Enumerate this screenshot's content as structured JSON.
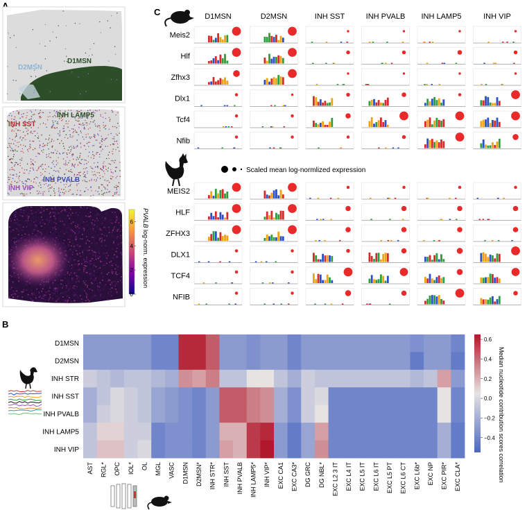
{
  "panel_letters": {
    "a": "A",
    "b": "B",
    "c": "C"
  },
  "panel_a": {
    "top_labels": {
      "d2msn": "D2MSN",
      "d1msn": "D1MSN"
    },
    "mid_labels": {
      "inh_lamp5": "INH LAMP5",
      "inh_sst": "INH SST",
      "inh_pvalb": "INH PVALB",
      "inh_vip": "INH VIP"
    },
    "colorbar": {
      "label_gene": "PVALB",
      "label_rest": " log-norm. expression",
      "ticks": [
        "0",
        "2",
        "4",
        "6"
      ]
    }
  },
  "panel_c": {
    "columns": [
      "D1MSN",
      "D2MSN",
      "INH SST",
      "INH PVALB",
      "INH LAMP5",
      "INH VIP"
    ],
    "mouse_rows": [
      "Meis2",
      "Hlf",
      "Zfhx3",
      "Dlx1",
      "Tcf4",
      "Nfib"
    ],
    "chicken_rows": [
      "MEIS2",
      "HLF",
      "ZFHX3",
      "DLX1",
      "TCF4",
      "NFIB"
    ],
    "legend_text": "Scaled mean log-normlized expression",
    "mouse_dot_sizes": [
      [
        1.0,
        1.0,
        0.1,
        0.1,
        0.1,
        0.1
      ],
      [
        1.0,
        1.0,
        0.3,
        0.3,
        0.4,
        0.3
      ],
      [
        0.7,
        1.0,
        0.1,
        0.1,
        0.1,
        0.1
      ],
      [
        0.2,
        0.1,
        0.3,
        0.4,
        0.2,
        1.0
      ],
      [
        0.2,
        0.2,
        0.5,
        1.0,
        1.0,
        1.0
      ],
      [
        0.2,
        0.2,
        0.2,
        0.3,
        1.0,
        0.6
      ]
    ],
    "chicken_dot_sizes": [
      [
        1.0,
        1.0,
        0.2,
        0.2,
        0.2,
        0.2
      ],
      [
        1.0,
        1.0,
        0.5,
        0.5,
        0.5,
        0.5
      ],
      [
        1.0,
        1.0,
        0.5,
        0.5,
        0.5,
        0.5
      ],
      [
        0.2,
        0.2,
        0.3,
        0.5,
        0.6,
        1.0
      ],
      [
        0.2,
        0.2,
        1.0,
        0.9,
        0.6,
        0.9
      ],
      [
        0.2,
        0.2,
        0.6,
        0.5,
        1.0,
        0.4
      ]
    ],
    "mouse_motif_cols": [
      [
        0,
        1
      ],
      [
        0,
        1
      ],
      [
        0,
        1
      ],
      [
        2,
        3,
        4,
        5
      ],
      [
        2,
        3,
        4,
        5
      ],
      [
        4,
        5
      ]
    ],
    "chicken_motif_cols": [
      [
        0,
        1
      ],
      [
        0,
        1
      ],
      [
        0,
        1
      ],
      [
        2,
        3,
        4,
        5
      ],
      [
        2,
        3,
        4,
        5
      ],
      [
        4,
        5
      ]
    ]
  },
  "chart_data": {
    "type": "heatmap",
    "title": "",
    "colorbar_label": "Median nucleotide contribution scores correlation",
    "colorbar_ticks": [
      "0.6",
      "0.4",
      "0.2",
      "0.0",
      "−0.2",
      "−0.4"
    ],
    "vmin": -0.55,
    "vmax": 0.65,
    "rows": [
      "D1MSN",
      "D2MSN",
      "INH STR",
      "INH SST",
      "INH PVALB",
      "INH LAMP5",
      "INH VIP"
    ],
    "cols": [
      "AST",
      "RGL*",
      "OPC",
      "IOL*",
      "OL",
      "MGL",
      "VASC",
      "D1MSN",
      "D2MSN*",
      "INH STR*",
      "INH SST",
      "INH PVALB",
      "INH LAMP5*",
      "INH VIP*",
      "EXC CA1",
      "EXC CA3*",
      "DG GRC",
      "DG NBL*",
      "EXC L2 3 IT",
      "EXC L4 IT",
      "EXC L5 IT",
      "EXC L6 IT",
      "EXC L5 PT",
      "EXC L6 CT",
      "EXC L6b*",
      "EXC NP",
      "EXC PIR*",
      "EXC CLA*"
    ],
    "values": [
      [
        -0.3,
        -0.3,
        -0.3,
        -0.3,
        -0.3,
        -0.4,
        -0.4,
        0.6,
        0.6,
        0.45,
        -0.3,
        -0.3,
        -0.35,
        -0.3,
        -0.3,
        -0.4,
        -0.3,
        -0.3,
        -0.3,
        -0.3,
        -0.3,
        -0.3,
        -0.3,
        -0.3,
        -0.35,
        -0.3,
        -0.3,
        -0.4
      ],
      [
        -0.3,
        -0.3,
        -0.3,
        -0.3,
        -0.3,
        -0.4,
        -0.4,
        0.6,
        0.6,
        0.45,
        -0.3,
        -0.3,
        -0.35,
        -0.3,
        -0.3,
        -0.4,
        -0.3,
        -0.3,
        -0.3,
        -0.3,
        -0.3,
        -0.3,
        -0.3,
        -0.3,
        -0.45,
        -0.3,
        -0.3,
        -0.45
      ],
      [
        -0.05,
        -0.1,
        -0.15,
        -0.1,
        -0.1,
        -0.15,
        -0.2,
        0.3,
        0.25,
        0.35,
        -0.1,
        -0.1,
        0.05,
        0.05,
        -0.1,
        -0.2,
        -0.05,
        -0.1,
        -0.1,
        -0.1,
        -0.1,
        -0.1,
        -0.1,
        -0.1,
        -0.15,
        -0.1,
        0.25,
        -0.3
      ],
      [
        -0.2,
        -0.1,
        0.0,
        -0.05,
        -0.1,
        -0.25,
        -0.3,
        -0.35,
        -0.4,
        -0.3,
        0.45,
        0.45,
        0.35,
        0.3,
        -0.2,
        -0.35,
        -0.05,
        0.0,
        -0.4,
        -0.4,
        -0.4,
        -0.4,
        -0.4,
        -0.4,
        -0.4,
        -0.4,
        0.05,
        -0.4
      ],
      [
        -0.2,
        -0.05,
        0.0,
        -0.05,
        -0.1,
        -0.25,
        -0.3,
        -0.35,
        -0.4,
        -0.3,
        0.45,
        0.45,
        0.35,
        0.3,
        -0.2,
        -0.35,
        -0.05,
        0.05,
        -0.4,
        -0.4,
        -0.4,
        -0.4,
        -0.4,
        -0.4,
        -0.4,
        -0.4,
        0.05,
        -0.4
      ],
      [
        -0.1,
        0.1,
        0.1,
        -0.05,
        -0.05,
        -0.4,
        -0.35,
        -0.35,
        -0.4,
        -0.3,
        0.2,
        0.2,
        0.55,
        0.6,
        -0.3,
        -0.45,
        -0.25,
        0.25,
        -0.4,
        -0.4,
        -0.4,
        -0.4,
        -0.4,
        -0.4,
        -0.4,
        -0.4,
        -0.2,
        -0.45
      ],
      [
        -0.1,
        0.15,
        0.15,
        -0.05,
        0.0,
        -0.4,
        -0.35,
        -0.35,
        -0.4,
        -0.3,
        0.25,
        0.2,
        0.55,
        0.65,
        -0.3,
        -0.45,
        -0.25,
        0.3,
        -0.4,
        -0.4,
        -0.4,
        -0.4,
        -0.4,
        -0.4,
        -0.4,
        -0.4,
        -0.2,
        -0.45
      ]
    ]
  }
}
